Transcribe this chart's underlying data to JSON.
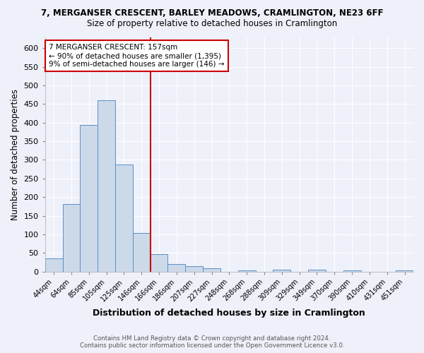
{
  "title_line1": "7, MERGANSER CRESCENT, BARLEY MEADOWS, CRAMLINGTON, NE23 6FF",
  "title_line2": "Size of property relative to detached houses in Cramlington",
  "xlabel": "Distribution of detached houses by size in Cramlington",
  "ylabel": "Number of detached properties",
  "bar_labels": [
    "44sqm",
    "64sqm",
    "85sqm",
    "105sqm",
    "125sqm",
    "146sqm",
    "166sqm",
    "186sqm",
    "207sqm",
    "227sqm",
    "248sqm",
    "268sqm",
    "288sqm",
    "309sqm",
    "329sqm",
    "349sqm",
    "370sqm",
    "390sqm",
    "410sqm",
    "431sqm",
    "451sqm"
  ],
  "bar_values": [
    35,
    181,
    393,
    460,
    287,
    104,
    47,
    20,
    15,
    8,
    0,
    4,
    0,
    5,
    0,
    5,
    0,
    4,
    0,
    0,
    4
  ],
  "bar_color": "#ccd9e8",
  "bar_edge_color": "#5b8fc9",
  "background_color": "#eef1f9",
  "grid_color": "#ffffff",
  "vline_x": 5.5,
  "vline_color": "#cc0000",
  "annotation_text": "7 MERGANSER CRESCENT: 157sqm\n← 90% of detached houses are smaller (1,395)\n9% of semi-detached houses are larger (146) →",
  "annotation_box_color": "#ffffff",
  "annotation_box_edge": "#cc0000",
  "footnote1": "Contains HM Land Registry data © Crown copyright and database right 2024.",
  "footnote2": "Contains public sector information licensed under the Open Government Licence v3.0.",
  "ylim": [
    0,
    630
  ],
  "yticks": [
    0,
    50,
    100,
    150,
    200,
    250,
    300,
    350,
    400,
    450,
    500,
    550,
    600
  ]
}
